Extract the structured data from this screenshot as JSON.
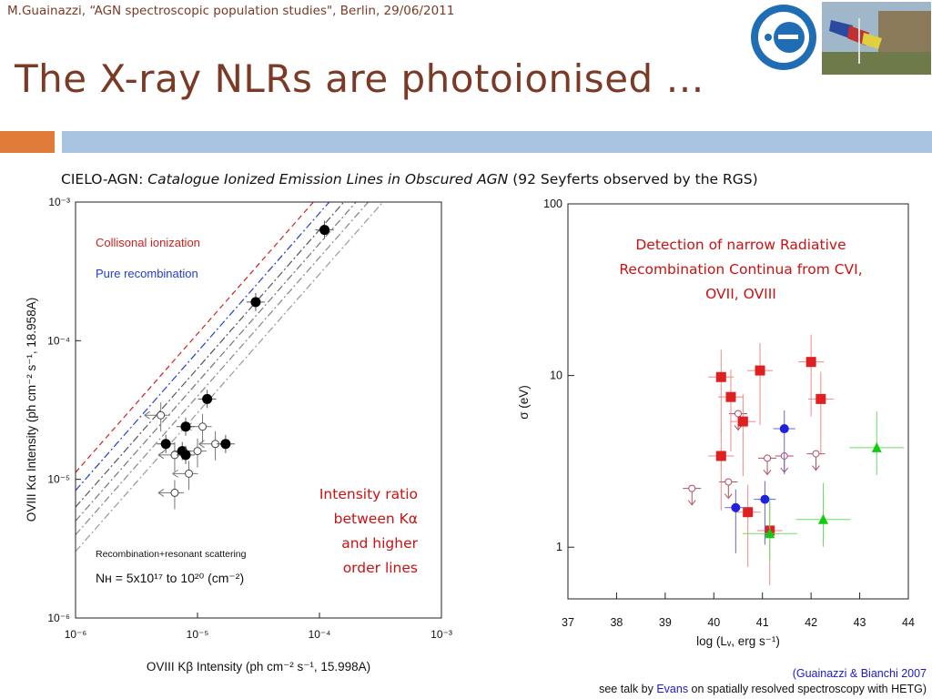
{
  "header": {
    "text": "M.Guainazzi, “AGN spectroscopic population studies\", Berlin, 29/06/2011"
  },
  "slide": {
    "title": "The X-ray NLRs are photoionised …"
  },
  "subtitle": {
    "prefix": "CIELO-AGN: ",
    "italic": "Catalogue Ionized Emission Lines in Obscured AGN",
    "suffix": " (92 Seyferts observed by the RGS)"
  },
  "colors": {
    "title": "#7a3a25",
    "accent_orange": "#e07b3a",
    "accent_blue": "#a9c4e0",
    "annotation_red": "#cc1111",
    "link_blue": "#1a1ad0"
  },
  "logos": {
    "esa": "esa-logo",
    "photo": "flags-photo"
  },
  "annotations": {
    "left": [
      "Intensity ratio",
      "between Kα",
      "and higher",
      "order lines"
    ],
    "right": [
      "Detection of narrow Radiative",
      "Recombination Continua from CVI,",
      "OVII, OVIII"
    ]
  },
  "footer": {
    "citation": "(Guainazzi & Bianchi 2007",
    "talk_prefix": "see talk by ",
    "talk_name": "Evans",
    "talk_suffix": " on spatially resolved spectroscopy with HETG)"
  },
  "chart_data": [
    {
      "type": "scatter",
      "xscale": "log",
      "yscale": "log",
      "xlabel": "OVIII Kβ Intensity (ph cm⁻² s⁻¹, 15.998A)",
      "ylabel": "OVIII Kα Intensity (ph cm⁻² s⁻¹, 18.958A)",
      "xlim": [
        1e-06,
        0.001
      ],
      "ylim": [
        1e-06,
        0.001
      ],
      "xticks": [
        "10⁻⁶",
        "10⁻⁵",
        "10⁻⁴",
        "10⁻³"
      ],
      "yticks": [
        "10⁻³",
        "10⁻⁴",
        "10⁻⁵",
        "10⁻⁶"
      ],
      "legend": [
        {
          "label": "Collisonal ionization",
          "color": "#d02020"
        },
        {
          "label": "Pure recombination",
          "color": "#2040d0"
        }
      ],
      "notes": [
        "Recombination+resonant scattering",
        "Nʜ = 5x10¹⁷ to 10²⁰ (cm⁻²)"
      ],
      "series": [
        {
          "name": "detections",
          "points": [
            [
              0.00011,
              0.00063
            ],
            [
              3e-05,
              0.00019
            ],
            [
              1.2e-05,
              3.8e-05
            ],
            [
              8e-06,
              2.4e-05
            ],
            [
              5.5e-06,
              1.8e-05
            ],
            [
              7.5e-06,
              1.6e-05
            ],
            [
              8e-06,
              1.5e-05
            ],
            [
              1.7e-05,
              1.8e-05
            ]
          ]
        },
        {
          "name": "limits",
          "points": [
            [
              5e-06,
              2.9e-05
            ],
            [
              1.1e-05,
              2.4e-05
            ],
            [
              1.4e-05,
              1.8e-05
            ],
            [
              6.5e-06,
              1.5e-05
            ],
            [
              1e-05,
              1.6e-05
            ],
            [
              8.5e-06,
              1.1e-05
            ],
            [
              6.5e-06,
              8e-06
            ]
          ]
        }
      ]
    },
    {
      "type": "scatter",
      "yscale": "log",
      "xlabel": "log (Lᵥ, erg s⁻¹)",
      "ylabel": "σ (eV)",
      "xlim": [
        37,
        44
      ],
      "ylim": [
        0.5,
        100
      ],
      "xticks": [
        "37",
        "38",
        "39",
        "40",
        "41",
        "42",
        "43",
        "44"
      ],
      "yticks": [
        "100",
        "10",
        "1"
      ],
      "series": [
        {
          "name": "red squares",
          "color": "#e02020",
          "points": [
            [
              40.15,
              9.8
            ],
            [
              40.35,
              7.5
            ],
            [
              40.6,
              5.4
            ],
            [
              40.95,
              10.7
            ],
            [
              42.0,
              12.0
            ],
            [
              42.2,
              7.3
            ],
            [
              40.15,
              3.4
            ],
            [
              40.7,
              1.6
            ],
            [
              41.15,
              1.25
            ]
          ]
        },
        {
          "name": "blue circles",
          "color": "#2020e0",
          "points": [
            [
              41.45,
              4.9
            ],
            [
              40.45,
              1.7
            ],
            [
              41.05,
              1.9
            ]
          ]
        },
        {
          "name": "green triangles",
          "color": "#10cc10",
          "points": [
            [
              43.35,
              3.8
            ],
            [
              42.25,
              1.45
            ],
            [
              41.15,
              1.2
            ]
          ]
        },
        {
          "name": "open limits",
          "color": "#b05060",
          "points": [
            [
              39.55,
              2.2
            ],
            [
              40.3,
              2.4
            ],
            [
              41.45,
              3.4
            ],
            [
              40.5,
              6.0
            ],
            [
              41.1,
              3.3
            ],
            [
              42.1,
              3.5
            ]
          ]
        }
      ]
    }
  ]
}
